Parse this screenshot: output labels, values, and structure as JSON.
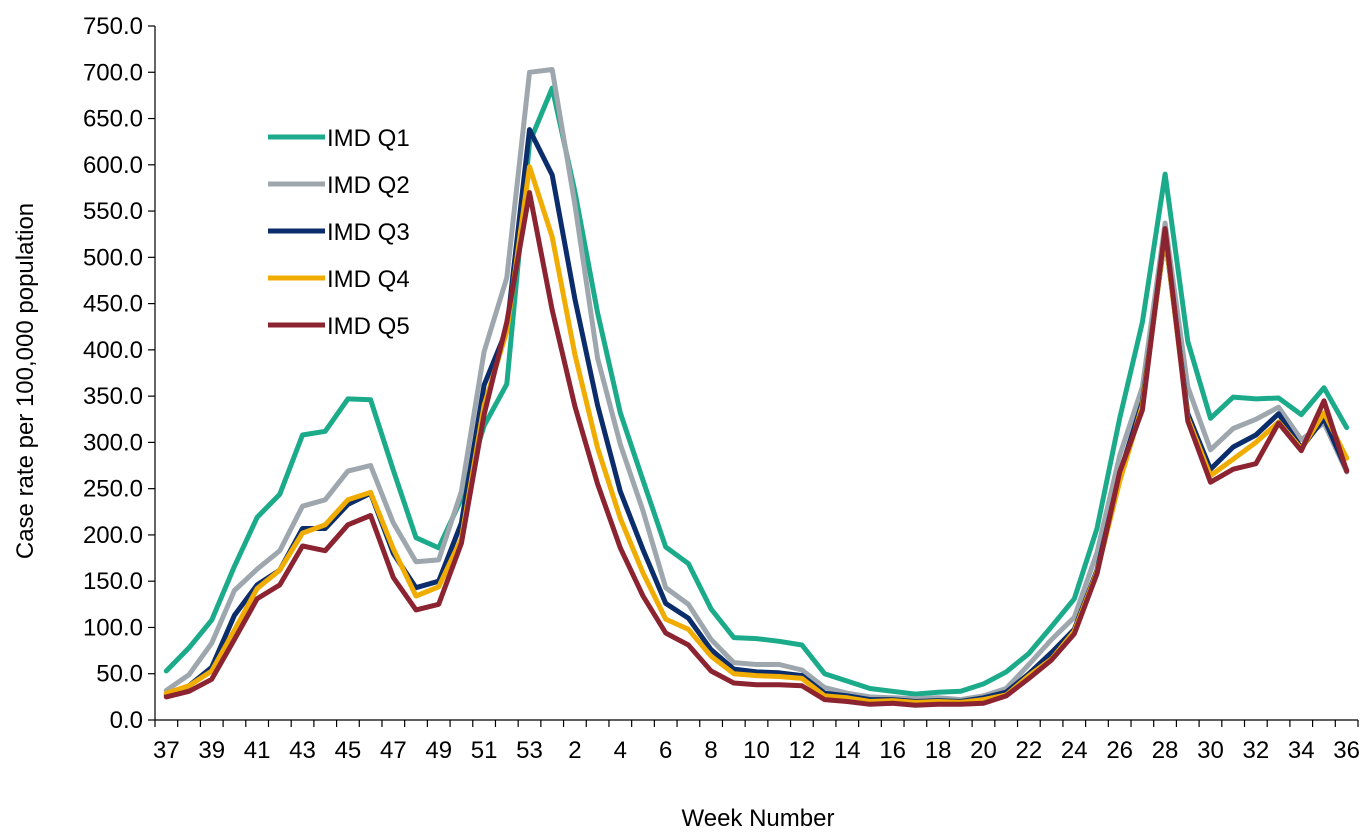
{
  "chart_data": {
    "type": "line",
    "title": "",
    "xlabel": "Week Number",
    "ylabel": "Case rate per 100,000 population",
    "ylim": [
      0,
      750
    ],
    "y_ticks": [
      "0.0",
      "50.0",
      "100.0",
      "150.0",
      "200.0",
      "250.0",
      "300.0",
      "350.0",
      "400.0",
      "450.0",
      "500.0",
      "550.0",
      "600.0",
      "650.0",
      "700.0",
      "750.0"
    ],
    "grid": false,
    "legend_position": "upper-left",
    "x": [
      "37",
      "38",
      "39",
      "40",
      "41",
      "42",
      "43",
      "44",
      "45",
      "46",
      "47",
      "48",
      "49",
      "50",
      "51",
      "52",
      "53",
      "1",
      "2",
      "3",
      "4",
      "5",
      "6",
      "7",
      "8",
      "9",
      "10",
      "11",
      "12",
      "13",
      "14",
      "15",
      "16",
      "17",
      "18",
      "19",
      "20",
      "21",
      "22",
      "23",
      "24",
      "25",
      "26",
      "27",
      "28",
      "29",
      "30",
      "31",
      "32",
      "33",
      "34",
      "35",
      "36"
    ],
    "series": [
      {
        "name": "IMD Q1",
        "color": "#1bab8b",
        "values": [
          53,
          78,
          108,
          166,
          219,
          244,
          308,
          312,
          347,
          346,
          270,
          197,
          186,
          239,
          318,
          363,
          624,
          683,
          571,
          440,
          332,
          259,
          187,
          169,
          120,
          89,
          88,
          85,
          81,
          50,
          42,
          34,
          31,
          28,
          30,
          31,
          39,
          52,
          72,
          101,
          131,
          207,
          326,
          430,
          590,
          409,
          326,
          349,
          347,
          348,
          330,
          359,
          316
        ]
      },
      {
        "name": "IMD Q2",
        "color": "#9ea7ae",
        "values": [
          32,
          49,
          83,
          140,
          163,
          183,
          231,
          238,
          269,
          275,
          213,
          171,
          173,
          247,
          398,
          478,
          700,
          703,
          557,
          391,
          298,
          226,
          143,
          125,
          87,
          62,
          60,
          60,
          54,
          35,
          29,
          25,
          24,
          23,
          24,
          22,
          26,
          34,
          60,
          87,
          111,
          181,
          286,
          360,
          537,
          360,
          292,
          315,
          325,
          338,
          303,
          321,
          268
        ]
      },
      {
        "name": "IMD Q3",
        "color": "#0c2d6b",
        "values": [
          27,
          37,
          57,
          113,
          146,
          162,
          207,
          207,
          233,
          245,
          180,
          143,
          150,
          213,
          362,
          422,
          638,
          589,
          455,
          340,
          247,
          184,
          126,
          110,
          76,
          55,
          52,
          51,
          48,
          29,
          26,
          22,
          22,
          20,
          21,
          20,
          24,
          30,
          50,
          73,
          98,
          162,
          266,
          344,
          523,
          331,
          271,
          295,
          308,
          331,
          294,
          326,
          270
        ]
      },
      {
        "name": "IMD Q4",
        "color": "#f0ac00",
        "values": [
          29,
          37,
          53,
          97,
          142,
          162,
          202,
          211,
          238,
          246,
          185,
          134,
          144,
          196,
          340,
          420,
          598,
          522,
          395,
          294,
          218,
          159,
          109,
          98,
          69,
          50,
          48,
          47,
          45,
          26,
          24,
          20,
          21,
          19,
          20,
          19,
          22,
          27,
          48,
          66,
          96,
          160,
          258,
          340,
          525,
          326,
          264,
          282,
          300,
          322,
          293,
          332,
          283
        ]
      },
      {
        "name": "IMD Q5",
        "color": "#8c2330",
        "values": [
          25,
          31,
          44,
          87,
          131,
          146,
          188,
          183,
          211,
          221,
          154,
          119,
          125,
          191,
          330,
          430,
          570,
          443,
          339,
          255,
          186,
          134,
          94,
          81,
          53,
          40,
          38,
          38,
          37,
          22,
          20,
          17,
          18,
          16,
          17,
          17,
          18,
          26,
          45,
          65,
          93,
          158,
          268,
          335,
          531,
          323,
          257,
          271,
          277,
          321,
          291,
          345,
          269
        ]
      }
    ]
  }
}
